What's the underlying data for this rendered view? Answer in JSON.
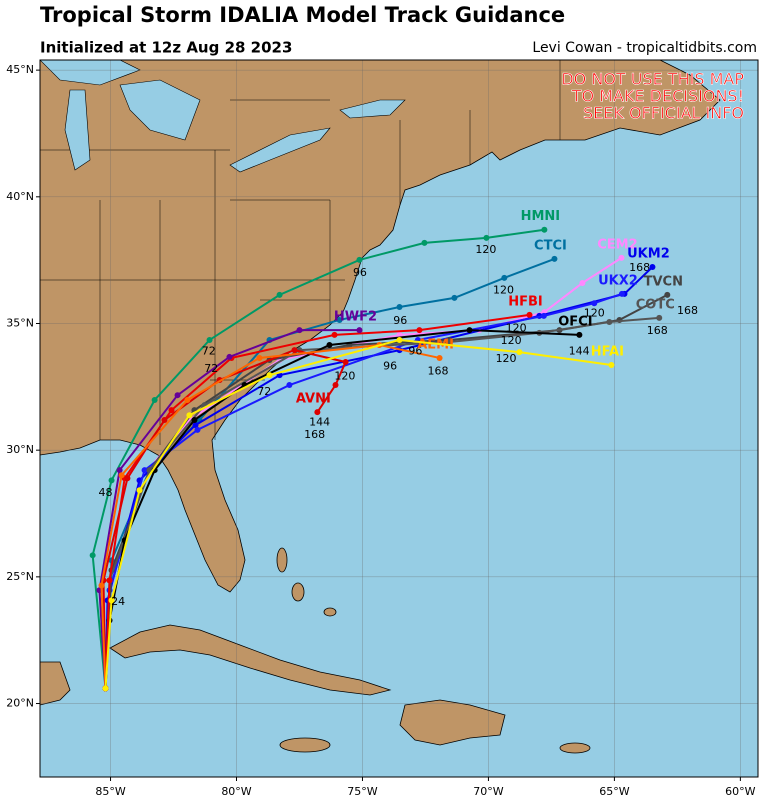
{
  "header": {
    "title": "Tropical Storm IDALIA Model Track Guidance",
    "subtitle": "Initialized at 12z Aug 28 2023",
    "credit": "Levi Cowan - tropicaltidbits.com"
  },
  "warning": [
    "DO NOT USE THIS MAP",
    "TO MAKE DECISIONS!",
    "SEEK OFFICIAL INFO"
  ],
  "map": {
    "lon_range": [
      -87.8,
      -59.3
    ],
    "lat_range": [
      17.1,
      45.4
    ],
    "lon_ticks": [
      {
        "value": -85,
        "label": "85°W"
      },
      {
        "value": -80,
        "label": "80°W"
      },
      {
        "value": -75,
        "label": "75°W"
      },
      {
        "value": -70,
        "label": "70°W"
      },
      {
        "value": -65,
        "label": "65°W"
      },
      {
        "value": -60,
        "label": "60°W"
      }
    ],
    "lat_ticks": [
      {
        "value": 20,
        "label": "20°N"
      },
      {
        "value": 25,
        "label": "25°N"
      },
      {
        "value": 30,
        "label": "30°N"
      },
      {
        "value": 35,
        "label": "35°N"
      },
      {
        "value": 40,
        "label": "40°N"
      },
      {
        "value": 45,
        "label": "45°N"
      }
    ],
    "grid": true,
    "tracks": [
      {
        "name": "HMNI",
        "color": "#009966",
        "lon": [
          -85.2,
          -85.71,
          -84.96,
          -83.25,
          -81.07,
          -78.29,
          -75.12,
          -72.54,
          -70.08,
          -67.78
        ],
        "lat": [
          20.6,
          25.85,
          28.81,
          31.98,
          34.35,
          36.13,
          37.51,
          38.18,
          38.38,
          38.7
        ],
        "hours": [
          {
            "hour": 48,
            "lon": -85.2,
            "lat": 28.3
          },
          {
            "hour": 72,
            "lon": -81.1,
            "lat": 33.9
          },
          {
            "hour": 96,
            "lon": -75.1,
            "lat": 37.0
          },
          {
            "hour": 120,
            "lon": -70.1,
            "lat": 37.9
          }
        ]
      },
      {
        "name": "CTCI",
        "color": "#0070a0",
        "lon": [
          -85.2,
          -84.96,
          -83.45,
          -81.47,
          -78.69,
          -75.91,
          -73.53,
          -71.35,
          -69.37,
          -67.38
        ],
        "lat": [
          20.6,
          25.65,
          29.21,
          31.19,
          34.35,
          35.14,
          35.65,
          36.01,
          36.8,
          37.55
        ],
        "hours": [
          {
            "hour": 96,
            "lon": -73.5,
            "lat": 35.1
          },
          {
            "hour": 120,
            "lon": -69.4,
            "lat": 36.3
          }
        ]
      },
      {
        "name": "CEM2",
        "color": "#ff88ff",
        "lon": [
          -85.2,
          -85.12,
          -83.85,
          -81.87,
          -78.29,
          -73.53,
          -70.36,
          -67.78,
          -66.27,
          -64.72
        ],
        "lat": [
          20.6,
          24.07,
          28.81,
          31.19,
          33.56,
          34.55,
          34.74,
          35.45,
          36.6,
          37.59
        ],
        "hours": [
          {
            "hour": 168,
            "lon": -64.0,
            "lat": 37.2
          }
        ]
      },
      {
        "name": "UKM2",
        "color": "#0000ee",
        "lon": [
          -85.2,
          -85.12,
          -83.85,
          -81.63,
          -78.29,
          -73.53,
          -67.98,
          -64.6,
          -63.49
        ],
        "lat": [
          20.6,
          24.07,
          28.81,
          30.99,
          32.96,
          33.95,
          35.3,
          36.17,
          37.23
        ],
        "hours": [
          {
            "hour": 72,
            "lon": -78.9,
            "lat": 32.3
          },
          {
            "hour": 96,
            "lon": -73.9,
            "lat": 33.3
          }
        ]
      },
      {
        "name": "UKX2",
        "color": "#1a1aff",
        "lon": [
          -85.2,
          -85.04,
          -83.65,
          -81.55,
          -77.9,
          -72.8,
          -67.8,
          -65.8,
          -64.7
        ],
        "lat": [
          20.6,
          24.47,
          29.21,
          30.8,
          32.57,
          34.35,
          35.3,
          35.8,
          36.17
        ],
        "hours": [
          {
            "hour": 120,
            "lon": -65.8,
            "lat": 35.4
          }
        ]
      },
      {
        "name": "TVCN",
        "color": "#444444",
        "lon": [
          -85.2,
          -84.96,
          -83.45,
          -81.67,
          -78.69,
          -75.52,
          -71.55,
          -67.18,
          -64.8,
          -62.9
        ],
        "lat": [
          20.6,
          25.26,
          29.21,
          31.58,
          33.56,
          34.15,
          34.35,
          34.74,
          35.14,
          36.13
        ],
        "hours": [
          {
            "hour": 168,
            "lon": -62.1,
            "lat": 35.5
          }
        ]
      },
      {
        "name": "COTC",
        "color": "#555555",
        "lon": [
          -85.2,
          -85.04,
          -83.45,
          -81.27,
          -77.5,
          -71.55,
          -67.98,
          -65.2,
          -63.22
        ],
        "lat": [
          20.6,
          24.86,
          29.21,
          31.78,
          33.95,
          34.27,
          34.63,
          35.06,
          35.22
        ],
        "hours": [
          {
            "hour": 168,
            "lon": -63.3,
            "lat": 34.7
          }
        ]
      },
      {
        "name": "OFCI",
        "color": "#000000",
        "lon": [
          -85.2,
          -85.04,
          -84.44,
          -83.25,
          -81.67,
          -79.68,
          -76.31,
          -70.75,
          -66.39
        ],
        "lat": [
          20.6,
          23.28,
          26.44,
          29.21,
          31.19,
          32.57,
          34.15,
          34.74,
          34.55
        ],
        "hours": [
          {
            "hour": 120,
            "lon": -69.1,
            "lat": 34.3
          },
          {
            "hour": 144,
            "lon": -66.4,
            "lat": 33.9
          }
        ]
      },
      {
        "name": "HFBI",
        "color": "#ee0000",
        "lon": [
          -85.2,
          -85.04,
          -84.44,
          -82.58,
          -80.2,
          -76.11,
          -72.74,
          -68.37
        ],
        "lat": [
          20.6,
          24.86,
          28.89,
          31.58,
          33.64,
          34.55,
          34.74,
          35.34
        ],
        "hours": [
          {
            "hour": 120,
            "lon": -68.9,
            "lat": 34.8
          }
        ]
      },
      {
        "name": "AVNI",
        "color": "#dd0000",
        "lon": [
          -85.2,
          -85.28,
          -84.33,
          -82.86,
          -80.67,
          -77.7,
          -75.67,
          -76.07,
          -76.79
        ],
        "lat": [
          20.6,
          24.86,
          28.89,
          31.19,
          32.77,
          33.95,
          33.48,
          32.57,
          31.5
        ],
        "hours": [
          {
            "hour": 120,
            "lon": -75.7,
            "lat": 32.9
          },
          {
            "hour": 144,
            "lon": -76.7,
            "lat": 31.1
          },
          {
            "hour": 168,
            "lon": -76.9,
            "lat": 30.6
          }
        ]
      },
      {
        "name": "HWF2",
        "color": "#660099",
        "lon": [
          -85.2,
          -85.44,
          -84.64,
          -82.34,
          -80.28,
          -77.5,
          -75.12
        ],
        "lat": [
          20.6,
          24.47,
          29.21,
          32.17,
          33.68,
          34.74,
          34.74
        ],
        "hours": [
          {
            "hour": 72,
            "lon": -81.0,
            "lat": 33.2
          }
        ]
      },
      {
        "name": "AEMI",
        "color": "#ff6600",
        "lon": [
          -85.2,
          -85.36,
          -84.56,
          -81.95,
          -79.09,
          -74.33,
          -71.94
        ],
        "lat": [
          20.6,
          24.66,
          29.01,
          31.98,
          33.64,
          34.15,
          33.64
        ],
        "hours": [
          {
            "hour": 96,
            "lon": -72.9,
            "lat": 33.9
          },
          {
            "hour": 168,
            "lon": -72.0,
            "lat": 33.1
          }
        ]
      },
      {
        "name": "HFAI",
        "color": "#ffee00",
        "lon": [
          -85.2,
          -84.96,
          -83.85,
          -81.87,
          -78.69,
          -73.53,
          -68.77,
          -65.12
        ],
        "lat": [
          20.6,
          24.07,
          28.42,
          31.38,
          32.96,
          34.35,
          33.87,
          33.36
        ],
        "hours": [
          {
            "hour": 24,
            "lon": -84.7,
            "lat": 24.0
          },
          {
            "hour": 120,
            "lon": -69.3,
            "lat": 33.6
          }
        ]
      }
    ]
  }
}
